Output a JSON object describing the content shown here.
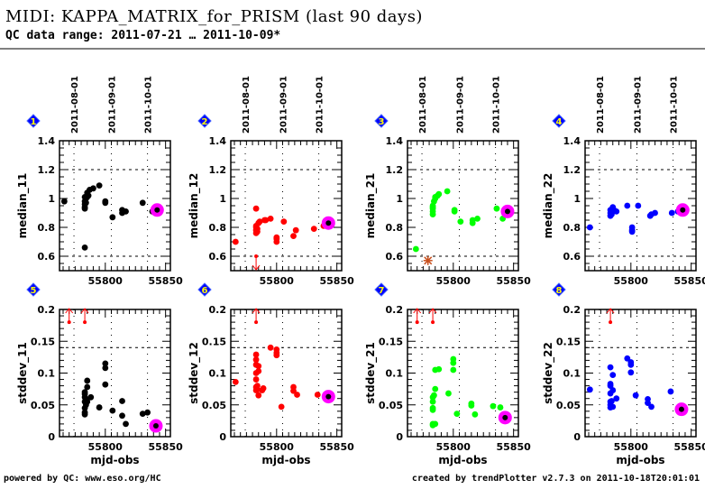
{
  "header": {
    "title": "MIDI: KAPPA_MATRIX_for_PRISM (last 90 days)",
    "subtitle": "QC data range: 2011-07-21 … 2011-10-09*"
  },
  "footer": {
    "left": "powered by QC: www.eso.org/HC",
    "right": "created by trendPlotter v2.7.3 on 2011-10-18T20:01:01"
  },
  "chart_data": [
    {
      "type": "scatter",
      "panel": "1",
      "color": "#000000",
      "ylabel": "median_11",
      "xlabel": "",
      "xlim": [
        55762,
        55854
      ],
      "ylim": [
        0.5,
        1.4
      ],
      "yticks": [
        0.6,
        0.8,
        1,
        1.2,
        1.4
      ],
      "ytick_labels": [
        "0.6",
        "0.8",
        "1",
        "1.2",
        "1.4"
      ],
      "xticks": [
        55800,
        55850
      ],
      "xtick_labels": [
        "55800",
        "55850"
      ],
      "date_ticks": [
        {
          "x": 55774,
          "label": "2011-08-01"
        },
        {
          "x": 55805,
          "label": "2011-09-01"
        },
        {
          "x": 55835,
          "label": "2011-10-01"
        }
      ],
      "hgrid": [
        0.6,
        1.2
      ],
      "x": [
        55766,
        55783,
        55783,
        55783,
        55783,
        55783,
        55783,
        55784,
        55784,
        55785,
        55785,
        55786,
        55787,
        55790,
        55795,
        55800,
        55800,
        55806,
        55814,
        55814,
        55815,
        55817,
        55831,
        55839
      ],
      "y": [
        0.98,
        0.93,
        0.94,
        0.96,
        0.98,
        1.01,
        0.66,
        0.97,
        1.0,
        1.01,
        1.04,
        1.02,
        1.06,
        1.07,
        1.09,
        0.97,
        0.98,
        0.87,
        0.9,
        0.92,
        0.91,
        0.91,
        0.97,
        0.91
      ],
      "latest": {
        "x": 55843,
        "y": 0.92
      },
      "upper_limits": [],
      "lower_limits": [],
      "outliers": []
    },
    {
      "type": "scatter",
      "panel": "2",
      "color": "#ff0000",
      "ylabel": "median_12",
      "xlabel": "",
      "xlim": [
        55762,
        55854
      ],
      "ylim": [
        0.5,
        1.4
      ],
      "yticks": [
        0.6,
        0.8,
        1,
        1.2,
        1.4
      ],
      "ytick_labels": [
        "0.6",
        "0.8",
        "1",
        "1.2",
        "1.4"
      ],
      "xticks": [
        55800,
        55850
      ],
      "xtick_labels": [
        "55800",
        "55850"
      ],
      "date_ticks": [
        {
          "x": 55774,
          "label": "2011-08-01"
        },
        {
          "x": 55805,
          "label": "2011-09-01"
        },
        {
          "x": 55835,
          "label": "2011-10-01"
        }
      ],
      "hgrid": [
        0.6,
        1.2
      ],
      "x": [
        55766,
        55783,
        55783,
        55783,
        55783,
        55783,
        55784,
        55784,
        55785,
        55786,
        55790,
        55791,
        55795,
        55800,
        55800,
        55800,
        55806,
        55814,
        55816,
        55831,
        55839
      ],
      "y": [
        0.7,
        0.76,
        0.78,
        0.8,
        0.81,
        0.93,
        0.77,
        0.79,
        0.83,
        0.84,
        0.85,
        0.85,
        0.86,
        0.7,
        0.72,
        0.73,
        0.84,
        0.74,
        0.78,
        0.79,
        0.81
      ],
      "latest": {
        "x": 55843,
        "y": 0.83
      },
      "upper_limits": [],
      "lower_limits": [
        {
          "x": 55783,
          "y": 0.6
        }
      ],
      "outliers": []
    },
    {
      "type": "scatter",
      "panel": "3",
      "color": "#00ff00",
      "ylabel": "median_21",
      "xlabel": "",
      "xlim": [
        55762,
        55854
      ],
      "ylim": [
        0.5,
        1.4
      ],
      "yticks": [
        0.6,
        0.8,
        1,
        1.2,
        1.4
      ],
      "ytick_labels": [
        "0.6",
        "0.8",
        "1",
        "1.2",
        "1.4"
      ],
      "xticks": [
        55800,
        55850
      ],
      "xtick_labels": [
        "55800",
        "55850"
      ],
      "date_ticks": [
        {
          "x": 55774,
          "label": "2011-08-01"
        },
        {
          "x": 55805,
          "label": "2011-09-01"
        },
        {
          "x": 55835,
          "label": "2011-10-01"
        }
      ],
      "hgrid": [
        0.6,
        1.2
      ],
      "x": [
        55769,
        55783,
        55783,
        55783,
        55783,
        55783,
        55784,
        55785,
        55785,
        55787,
        55788,
        55795,
        55801,
        55801,
        55806,
        55816,
        55816,
        55820,
        55836,
        55841
      ],
      "y": [
        0.65,
        0.89,
        0.91,
        0.93,
        0.94,
        0.95,
        0.98,
        1.0,
        1.01,
        1.02,
        1.03,
        1.05,
        0.91,
        0.92,
        0.84,
        0.83,
        0.85,
        0.86,
        0.93,
        0.86
      ],
      "latest": {
        "x": 55845,
        "y": 0.91
      },
      "upper_limits": [],
      "lower_limits": [],
      "outliers": [
        {
          "x": 55779,
          "y": 0.57
        }
      ]
    },
    {
      "type": "scatter",
      "panel": "4",
      "color": "#0000ff",
      "ylabel": "median_22",
      "xlabel": "",
      "xlim": [
        55762,
        55854
      ],
      "ylim": [
        0.5,
        1.4
      ],
      "yticks": [
        0.6,
        0.8,
        1,
        1.2,
        1.4
      ],
      "ytick_labels": [
        "0.6",
        "0.8",
        "1",
        "1.2",
        "1.4"
      ],
      "xticks": [
        55800,
        55850
      ],
      "xtick_labels": [
        "55800",
        "55850"
      ],
      "date_ticks": [
        {
          "x": 55774,
          "label": "2011-08-01"
        },
        {
          "x": 55805,
          "label": "2011-09-01"
        },
        {
          "x": 55835,
          "label": "2011-10-01"
        }
      ],
      "hgrid": [
        0.6,
        1.2
      ],
      "x": [
        55766,
        55783,
        55783,
        55783,
        55784,
        55784,
        55785,
        55786,
        55788,
        55797,
        55801,
        55801,
        55801,
        55806,
        55816,
        55817,
        55820,
        55834,
        55839
      ],
      "y": [
        0.8,
        0.88,
        0.9,
        0.92,
        0.91,
        0.89,
        0.94,
        0.92,
        0.91,
        0.95,
        0.77,
        0.78,
        0.8,
        0.95,
        0.88,
        0.89,
        0.9,
        0.9,
        0.91
      ],
      "latest": {
        "x": 55843,
        "y": 0.92
      },
      "upper_limits": [],
      "lower_limits": [],
      "outliers": []
    },
    {
      "type": "scatter",
      "panel": "5",
      "color": "#000000",
      "ylabel": "stddev_11",
      "xlabel": "mjd-obs",
      "xlim": [
        55762,
        55854
      ],
      "ylim": [
        0,
        0.2
      ],
      "yticks": [
        0,
        0.05,
        0.1,
        0.15,
        0.2
      ],
      "ytick_labels": [
        "0",
        "0.05",
        "0.1",
        "0.15",
        "0.2"
      ],
      "xticks": [
        55800,
        55850
      ],
      "xtick_labels": [
        "55800",
        "55850"
      ],
      "date_ticks": [
        {
          "x": 55774,
          "label": ""
        },
        {
          "x": 55805,
          "label": ""
        },
        {
          "x": 55835,
          "label": ""
        }
      ],
      "hgrid": [
        0.14
      ],
      "x": [
        55783,
        55783,
        55783,
        55783,
        55783,
        55783,
        55783,
        55784,
        55784,
        55785,
        55785,
        55785,
        55788,
        55795,
        55800,
        55800,
        55800,
        55806,
        55814,
        55814,
        55817,
        55831,
        55835
      ],
      "y": [
        0.035,
        0.038,
        0.045,
        0.055,
        0.062,
        0.067,
        0.07,
        0.05,
        0.058,
        0.055,
        0.078,
        0.088,
        0.062,
        0.046,
        0.082,
        0.108,
        0.115,
        0.041,
        0.056,
        0.033,
        0.02,
        0.036,
        0.038
      ],
      "latest": {
        "x": 55842,
        "y": 0.017
      },
      "upper_limits": [
        {
          "x": 55770,
          "y": 0.18
        },
        {
          "x": 55783,
          "y": 0.18
        }
      ],
      "lower_limits": [],
      "outliers": []
    },
    {
      "type": "scatter",
      "panel": "6",
      "color": "#ff0000",
      "ylabel": "stddev_12",
      "xlabel": "mjd-obs",
      "xlim": [
        55762,
        55854
      ],
      "ylim": [
        0,
        0.2
      ],
      "yticks": [
        0,
        0.05,
        0.1,
        0.15,
        0.2
      ],
      "ytick_labels": [
        "0",
        "0.05",
        "0.1",
        "0.15",
        "0.2"
      ],
      "xticks": [
        55800,
        55850
      ],
      "xtick_labels": [
        "55800",
        "55850"
      ],
      "date_ticks": [
        {
          "x": 55774,
          "label": ""
        },
        {
          "x": 55805,
          "label": ""
        },
        {
          "x": 55835,
          "label": ""
        }
      ],
      "hgrid": [
        0.14
      ],
      "x": [
        55766,
        55783,
        55783,
        55783,
        55783,
        55783,
        55783,
        55783,
        55784,
        55784,
        55785,
        55785,
        55785,
        55788,
        55789,
        55795,
        55800,
        55800,
        55800,
        55804,
        55814,
        55814,
        55817,
        55834
      ],
      "y": [
        0.086,
        0.073,
        0.078,
        0.09,
        0.1,
        0.113,
        0.121,
        0.129,
        0.074,
        0.08,
        0.065,
        0.103,
        0.111,
        0.073,
        0.076,
        0.14,
        0.128,
        0.132,
        0.137,
        0.047,
        0.072,
        0.078,
        0.066,
        0.066
      ],
      "latest": {
        "x": 55843,
        "y": 0.063
      },
      "upper_limits": [
        {
          "x": 55783,
          "y": 0.18
        }
      ],
      "lower_limits": [],
      "outliers": []
    },
    {
      "type": "scatter",
      "panel": "7",
      "color": "#00ff00",
      "ylabel": "stddev_21",
      "xlabel": "mjd-obs",
      "xlim": [
        55762,
        55854
      ],
      "ylim": [
        0,
        0.2
      ],
      "yticks": [
        0,
        0.05,
        0.1,
        0.15,
        0.2
      ],
      "ytick_labels": [
        "0",
        "0.05",
        "0.1",
        "0.15",
        "0.2"
      ],
      "xticks": [
        55800,
        55850
      ],
      "xtick_labels": [
        "55800",
        "55850"
      ],
      "date_ticks": [
        {
          "x": 55774,
          "label": ""
        },
        {
          "x": 55805,
          "label": ""
        },
        {
          "x": 55835,
          "label": ""
        }
      ],
      "hgrid": [
        0.14
      ],
      "x": [
        55783,
        55783,
        55783,
        55783,
        55783,
        55783,
        55784,
        55785,
        55785,
        55785,
        55788,
        55796,
        55800,
        55800,
        55800,
        55803,
        55815,
        55815,
        55818,
        55833,
        55839
      ],
      "y": [
        0.018,
        0.02,
        0.042,
        0.045,
        0.055,
        0.062,
        0.065,
        0.02,
        0.075,
        0.105,
        0.106,
        0.068,
        0.105,
        0.116,
        0.122,
        0.036,
        0.049,
        0.052,
        0.035,
        0.048,
        0.046
      ],
      "latest": {
        "x": 55843,
        "y": 0.03
      },
      "upper_limits": [
        {
          "x": 55770,
          "y": 0.18
        },
        {
          "x": 55783,
          "y": 0.18
        }
      ],
      "lower_limits": [],
      "outliers": []
    },
    {
      "type": "scatter",
      "panel": "8",
      "color": "#0000ff",
      "ylabel": "stddev_22",
      "xlabel": "mjd-obs",
      "xlim": [
        55762,
        55854
      ],
      "ylim": [
        0,
        0.2
      ],
      "yticks": [
        0,
        0.05,
        0.1,
        0.15,
        0.2
      ],
      "ytick_labels": [
        "0",
        "0.05",
        "0.1",
        "0.15",
        "0.2"
      ],
      "xticks": [
        55800,
        55850
      ],
      "xtick_labels": [
        "55800",
        "55850"
      ],
      "date_ticks": [
        {
          "x": 55774,
          "label": ""
        },
        {
          "x": 55805,
          "label": ""
        },
        {
          "x": 55835,
          "label": ""
        }
      ],
      "hgrid": [
        0.14
      ],
      "x": [
        55766,
        55783,
        55783,
        55783,
        55783,
        55783,
        55783,
        55783,
        55784,
        55785,
        55785,
        55785,
        55788,
        55797,
        55800,
        55800,
        55800,
        55804,
        55814,
        55814,
        55817,
        55833
      ],
      "y": [
        0.074,
        0.046,
        0.05,
        0.055,
        0.068,
        0.08,
        0.083,
        0.109,
        0.056,
        0.047,
        0.073,
        0.097,
        0.06,
        0.123,
        0.101,
        0.113,
        0.117,
        0.065,
        0.053,
        0.059,
        0.047,
        0.071
      ],
      "latest": {
        "x": 55842,
        "y": 0.043
      },
      "upper_limits": [
        {
          "x": 55783,
          "y": 0.18
        }
      ],
      "lower_limits": [],
      "outliers": []
    }
  ],
  "badges": [
    "1",
    "2",
    "3",
    "4",
    "5",
    "6",
    "7",
    "8"
  ],
  "colors": {
    "latest_marker": "#ff00ff",
    "badge_fill": "#0000ff",
    "badge_text": "#ffff00",
    "limit_arrow": "#ff0000",
    "outlier": "#c8501e"
  }
}
